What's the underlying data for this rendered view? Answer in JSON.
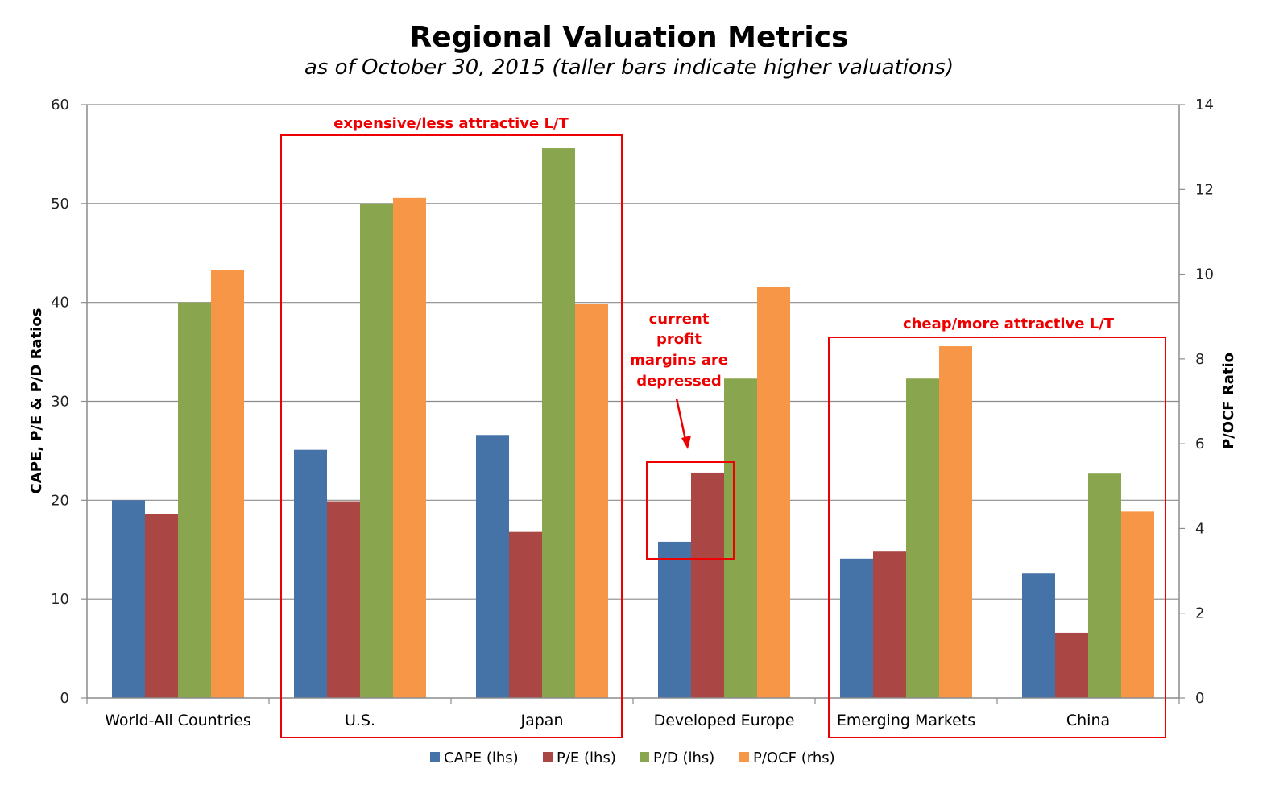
{
  "chart_data": {
    "type": "bar",
    "title": "Regional Valuation Metrics",
    "subtitle": "as of October 30, 2015 (taller bars indicate higher valuations)",
    "ylabel": "CAPE, P/E & P/D Ratios",
    "y2label": "P/OCF Ratio",
    "ylim": [
      0,
      60
    ],
    "y2lim": [
      0,
      14
    ],
    "yticks": [
      "0",
      "10",
      "20",
      "30",
      "40",
      "50",
      "60"
    ],
    "y2ticks": [
      "0",
      "2",
      "4",
      "6",
      "8",
      "10",
      "12",
      "14"
    ],
    "categories": [
      "World-All Countries",
      "U.S.",
      "Japan",
      "Developed Europe",
      "Emerging Markets",
      "China"
    ],
    "series": [
      {
        "name": "CAPE (lhs)",
        "axis": "left",
        "color": "#4572a7",
        "values": [
          20,
          25.1,
          26.6,
          15.8,
          14.1,
          12.6
        ]
      },
      {
        "name": "P/E (lhs)",
        "axis": "left",
        "color": "#aa4643",
        "values": [
          18.6,
          19.9,
          16.8,
          22.8,
          14.8,
          6.6
        ]
      },
      {
        "name": "P/D (lhs)",
        "axis": "left",
        "color": "#89a54e",
        "values": [
          40,
          50,
          55.6,
          32.3,
          32.3,
          22.7
        ]
      },
      {
        "name": "P/OCF (rhs)",
        "axis": "right",
        "color": "#f79646",
        "values": [
          10.1,
          11.8,
          9.3,
          9.7,
          8.3,
          4.4
        ]
      }
    ],
    "grid": true,
    "legend_position": "bottom",
    "annotations": [
      {
        "text": "expensive/less attractive L/T",
        "color": "#ee0000"
      },
      {
        "lines": [
          "current",
          "profit",
          "margins are",
          "depressed"
        ],
        "color": "#ee0000"
      },
      {
        "text": "cheap/more attractive L/T",
        "color": "#ee0000"
      }
    ]
  }
}
